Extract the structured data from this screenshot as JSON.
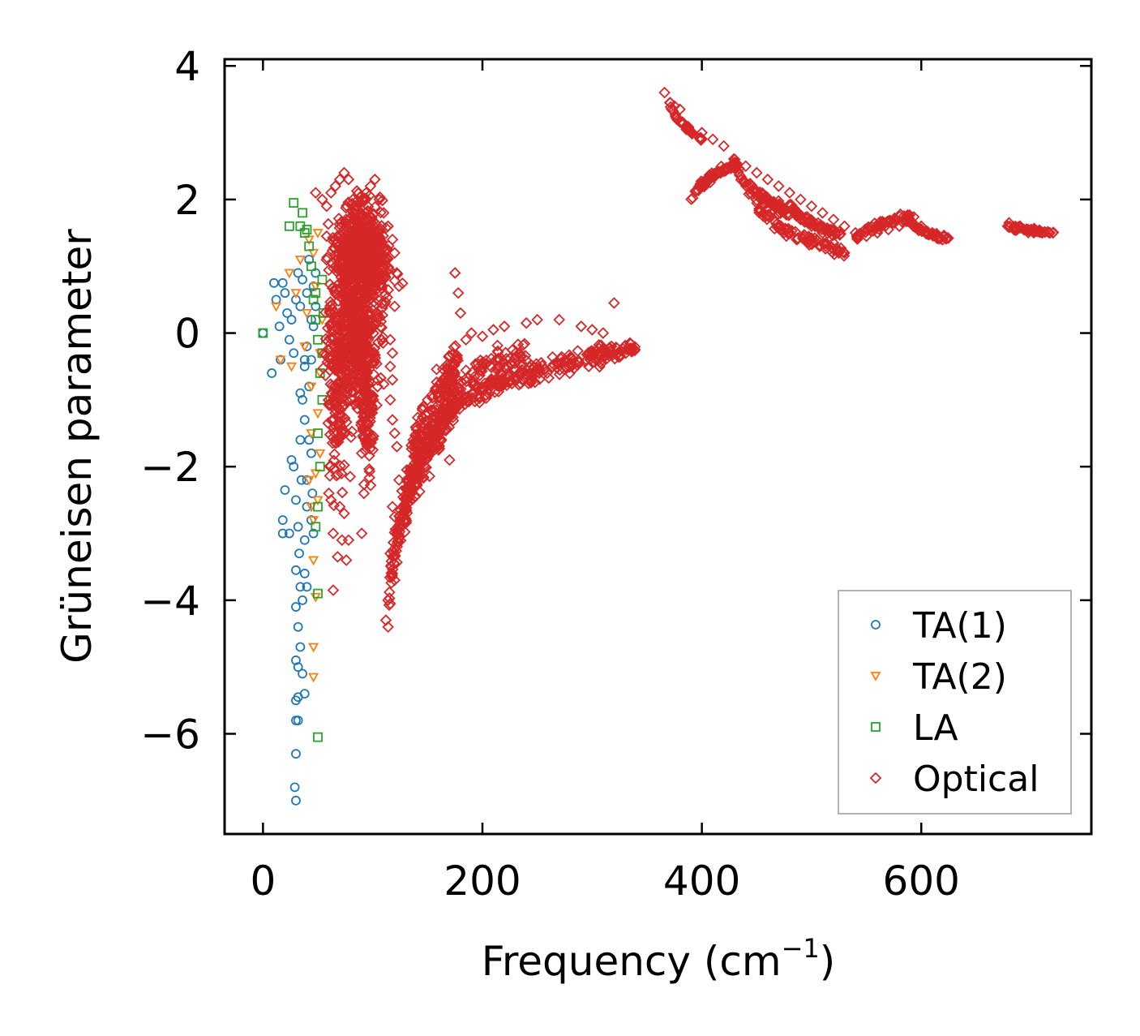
{
  "chart_data": {
    "type": "scatter",
    "title": "",
    "xlabel": "Frequency (cm",
    "xlabel_sup": "−1",
    "xlabel_end": ")",
    "ylabel": "Grüneisen parameter",
    "xlim": [
      -35,
      755
    ],
    "ylim": [
      -7.5,
      4.1
    ],
    "xticks": [
      0,
      200,
      400,
      600
    ],
    "xtick_labels": [
      "0",
      "200",
      "400",
      "600"
    ],
    "yticks": [
      4,
      2,
      0,
      -2,
      -4,
      -6
    ],
    "ytick_labels": [
      "4",
      "2",
      "0",
      "−2",
      "−4",
      "−6"
    ],
    "grid": false,
    "legend_position": "bottom-right",
    "series": [
      {
        "name": "TA(1)",
        "marker": "circle",
        "color": "#1f77b4",
        "points": [
          [
            0,
            0
          ],
          [
            10,
            0.75
          ],
          [
            12,
            0.5
          ],
          [
            15,
            0.1
          ],
          [
            18,
            0.75
          ],
          [
            20,
            0.6
          ],
          [
            22,
            0.3
          ],
          [
            24,
            -0.1
          ],
          [
            26,
            0.2
          ],
          [
            28,
            -0.3
          ],
          [
            30,
            0.5
          ],
          [
            32,
            0.9
          ],
          [
            34,
            0.4
          ],
          [
            36,
            0.8
          ],
          [
            38,
            -0.4
          ],
          [
            40,
            0.6
          ],
          [
            42,
            1.1
          ],
          [
            44,
            0.2
          ],
          [
            46,
            0.7
          ],
          [
            48,
            0.4
          ],
          [
            8,
            -0.6
          ],
          [
            16,
            -0.4
          ],
          [
            20,
            -2.35
          ],
          [
            18,
            -2.8
          ],
          [
            18,
            -3.0
          ],
          [
            24,
            -3.0
          ],
          [
            26,
            -1.9
          ],
          [
            28,
            -2.0
          ],
          [
            30,
            -2.5
          ],
          [
            30,
            -3.55
          ],
          [
            32,
            -2.9
          ],
          [
            33,
            -3.3
          ],
          [
            34,
            -3.8
          ],
          [
            36,
            -4.0
          ],
          [
            38,
            -3.1
          ],
          [
            38,
            -3.6
          ],
          [
            40,
            -2.6
          ],
          [
            40,
            -2.2
          ],
          [
            42,
            -1.6
          ],
          [
            36,
            -1.0
          ],
          [
            34,
            -1.6
          ],
          [
            32,
            -4.4
          ],
          [
            30,
            -4.1
          ],
          [
            30,
            -4.9
          ],
          [
            32,
            -5.0
          ],
          [
            34,
            -4.7
          ],
          [
            36,
            -5.1
          ],
          [
            38,
            -5.4
          ],
          [
            30,
            -5.5
          ],
          [
            32,
            -5.45
          ],
          [
            30,
            -5.8
          ],
          [
            32,
            -5.8
          ],
          [
            30,
            -6.3
          ],
          [
            29,
            -6.8
          ],
          [
            30,
            -7.0
          ],
          [
            38,
            -1.3
          ],
          [
            40,
            -0.2
          ],
          [
            42,
            -0.8
          ],
          [
            44,
            -1.8
          ],
          [
            45,
            -2.4
          ],
          [
            46,
            -3.0
          ],
          [
            44,
            -2.8
          ],
          [
            40,
            -3.8
          ],
          [
            35,
            -2.2
          ],
          [
            38,
            -0.5
          ],
          [
            34,
            -0.9
          ],
          [
            44,
            -0.4
          ],
          [
            46,
            0.1
          ],
          [
            48,
            0.9
          ]
        ]
      },
      {
        "name": "TA(2)",
        "marker": "triangle-down",
        "color": "#ff7f0e",
        "points": [
          [
            12,
            0.4
          ],
          [
            16,
            -0.4
          ],
          [
            24,
            0.9
          ],
          [
            26,
            -0.5
          ],
          [
            30,
            0.6
          ],
          [
            34,
            1.1
          ],
          [
            38,
            -0.2
          ],
          [
            40,
            0.3
          ],
          [
            42,
            1.4
          ],
          [
            44,
            -0.8
          ],
          [
            46,
            1.2
          ],
          [
            48,
            0.7
          ],
          [
            50,
            1.5
          ],
          [
            52,
            -0.3
          ],
          [
            44,
            -2.6
          ],
          [
            46,
            -2.8
          ],
          [
            46,
            -3.4
          ],
          [
            48,
            -3.95
          ],
          [
            46,
            -4.7
          ],
          [
            46,
            -5.15
          ],
          [
            50,
            -1.2
          ],
          [
            52,
            -1.8
          ],
          [
            48,
            -2.1
          ],
          [
            42,
            -2.2
          ],
          [
            44,
            -1.5
          ],
          [
            50,
            -2.5
          ],
          [
            52,
            -0.6
          ],
          [
            54,
            0.2
          ]
        ]
      },
      {
        "name": "LA",
        "marker": "square",
        "color": "#2ca02c",
        "points": [
          [
            0,
            0
          ],
          [
            24,
            1.6
          ],
          [
            28,
            1.95
          ],
          [
            34,
            1.6
          ],
          [
            38,
            1.5
          ],
          [
            40,
            1.55
          ],
          [
            36,
            1.8
          ],
          [
            42,
            1.3
          ],
          [
            44,
            1.0
          ],
          [
            46,
            0.5
          ],
          [
            48,
            0.2
          ],
          [
            50,
            -0.1
          ],
          [
            52,
            -0.6
          ],
          [
            54,
            0.8
          ],
          [
            55,
            0.3
          ],
          [
            50,
            -1.5
          ],
          [
            52,
            -2.0
          ],
          [
            50,
            -2.6
          ],
          [
            48,
            -2.9
          ],
          [
            50,
            -3.9
          ],
          [
            50,
            -6.05
          ],
          [
            54,
            -1.0
          ],
          [
            54,
            -0.3
          ],
          [
            48,
            0.6
          ]
        ]
      },
      {
        "name": "Optical",
        "marker": "diamond",
        "color": "#d62728",
        "points": [
          [
            48,
            2.1
          ],
          [
            54,
            2.0
          ],
          [
            58,
            1.9
          ],
          [
            62,
            2.1
          ],
          [
            66,
            2.2
          ],
          [
            70,
            2.3
          ],
          [
            74,
            2.4
          ],
          [
            78,
            2.3
          ],
          [
            82,
            2.0
          ],
          [
            86,
            1.9
          ],
          [
            90,
            2.0
          ],
          [
            94,
            2.1
          ],
          [
            98,
            2.2
          ],
          [
            102,
            2.3
          ],
          [
            106,
            2.0
          ],
          [
            110,
            1.8
          ],
          [
            114,
            1.6
          ],
          [
            118,
            1.4
          ],
          [
            120,
            1.2
          ],
          [
            122,
            0.9
          ],
          [
            124,
            0.7
          ],
          [
            120,
            0.4
          ],
          [
            116,
            -0.1
          ],
          [
            118,
            -0.3
          ],
          [
            116,
            -0.5
          ],
          [
            118,
            -0.7
          ],
          [
            116,
            -1.0
          ],
          [
            118,
            -1.3
          ],
          [
            120,
            -1.5
          ],
          [
            122,
            -1.7
          ],
          [
            124,
            -2.2
          ],
          [
            118,
            -2.6
          ],
          [
            120,
            -2.75
          ],
          [
            122,
            -3.0
          ],
          [
            116,
            -3.3
          ],
          [
            118,
            -3.6
          ],
          [
            120,
            -3.7
          ],
          [
            114,
            -4.0
          ],
          [
            116,
            -4.05
          ],
          [
            112,
            -4.3
          ],
          [
            114,
            -4.4
          ],
          [
            60,
            -2.4
          ],
          [
            62,
            -2.5
          ],
          [
            70,
            -2.6
          ],
          [
            74,
            -2.7
          ],
          [
            64,
            -3.0
          ],
          [
            72,
            -3.1
          ],
          [
            78,
            -3.1
          ],
          [
            68,
            -3.35
          ],
          [
            76,
            -3.4
          ],
          [
            64,
            -3.85
          ],
          [
            90,
            -3.0
          ],
          [
            92,
            -2.4
          ],
          [
            90,
            -1.8
          ],
          [
            96,
            -1.5
          ],
          [
            98,
            -1.2
          ],
          [
            150,
            -1.6
          ],
          [
            160,
            -1.75
          ],
          [
            170,
            -1.9
          ],
          [
            175,
            0.9
          ],
          [
            178,
            0.6
          ],
          [
            180,
            0.3
          ],
          [
            185,
            -0.1
          ],
          [
            190,
            0.0
          ],
          [
            200,
            -0.05
          ],
          [
            210,
            0.05
          ],
          [
            220,
            0.1
          ],
          [
            240,
            0.15
          ],
          [
            250,
            0.2
          ],
          [
            270,
            0.2
          ],
          [
            290,
            0.1
          ],
          [
            300,
            0.05
          ],
          [
            310,
            0.0
          ],
          [
            320,
            0.45
          ],
          [
            366,
            3.6
          ],
          [
            375,
            3.4
          ],
          [
            380,
            3.35
          ],
          [
            400,
            3.0
          ],
          [
            410,
            2.9
          ],
          [
            420,
            2.8
          ],
          [
            430,
            2.6
          ],
          [
            440,
            2.5
          ],
          [
            450,
            2.4
          ],
          [
            460,
            2.3
          ],
          [
            470,
            2.2
          ],
          [
            480,
            2.1
          ],
          [
            490,
            2.0
          ],
          [
            500,
            1.9
          ],
          [
            510,
            1.8
          ],
          [
            520,
            1.7
          ],
          [
            530,
            1.6
          ],
          [
            540,
            1.5
          ],
          [
            550,
            1.45
          ],
          [
            560,
            1.5
          ],
          [
            570,
            1.55
          ],
          [
            580,
            1.6
          ],
          [
            590,
            1.65
          ],
          [
            600,
            1.6
          ],
          [
            610,
            1.5
          ],
          [
            620,
            1.45
          ],
          [
            680,
            1.65
          ],
          [
            690,
            1.6
          ],
          [
            700,
            1.55
          ],
          [
            710,
            1.5
          ],
          [
            720,
            1.5
          ],
          [
            490,
            1.7
          ],
          [
            500,
            1.6
          ],
          [
            510,
            1.5
          ],
          [
            520,
            1.35
          ],
          [
            530,
            1.2
          ]
        ],
        "clusters": [
          {
            "cx": 90,
            "cy": 1.2,
            "sx": 20,
            "sy": 0.55,
            "n": 700
          },
          {
            "cx": 85,
            "cy": 0.0,
            "sx": 18,
            "sy": 0.9,
            "n": 450
          },
          {
            "cx": 68,
            "cy": -0.8,
            "sx": 9,
            "sy": 1.1,
            "n": 160
          },
          {
            "cx": 95,
            "cy": -1.2,
            "sx": 7,
            "sy": 0.7,
            "n": 100
          }
        ],
        "curves": [
          {
            "x0": 115,
            "x1": 175,
            "a": -4.1,
            "b": -1.0,
            "spread": 0.25,
            "n": 280
          },
          {
            "x0": 130,
            "x1": 178,
            "a": -2.8,
            "b": -0.4,
            "spread": 0.3,
            "n": 160
          },
          {
            "x0": 165,
            "x1": 340,
            "a": -1.4,
            "b": -0.2,
            "spread": 0.12,
            "n": 260
          },
          {
            "x0": 175,
            "x1": 240,
            "a": -1.0,
            "b": -0.3,
            "spread": 0.2,
            "n": 80
          },
          {
            "x0": 390,
            "x1": 432,
            "a": 1.9,
            "b": 2.55,
            "spread": 0.05,
            "n": 70
          },
          {
            "x0": 432,
            "x1": 480,
            "a": 2.55,
            "b": 1.8,
            "spread": 0.08,
            "n": 80
          },
          {
            "x0": 450,
            "x1": 530,
            "a": 2.0,
            "b": 1.2,
            "spread": 0.06,
            "n": 80
          },
          {
            "x0": 480,
            "x1": 530,
            "a": 2.0,
            "b": 1.45,
            "spread": 0.04,
            "n": 60
          },
          {
            "x0": 540,
            "x1": 595,
            "a": 1.4,
            "b": 1.75,
            "spread": 0.05,
            "n": 60
          },
          {
            "x0": 590,
            "x1": 625,
            "a": 1.7,
            "b": 1.4,
            "spread": 0.04,
            "n": 40
          },
          {
            "x0": 370,
            "x1": 400,
            "a": 3.55,
            "b": 2.9,
            "spread": 0.03,
            "n": 30
          },
          {
            "x0": 678,
            "x1": 722,
            "a": 1.62,
            "b": 1.5,
            "spread": 0.03,
            "n": 40
          }
        ]
      }
    ]
  }
}
